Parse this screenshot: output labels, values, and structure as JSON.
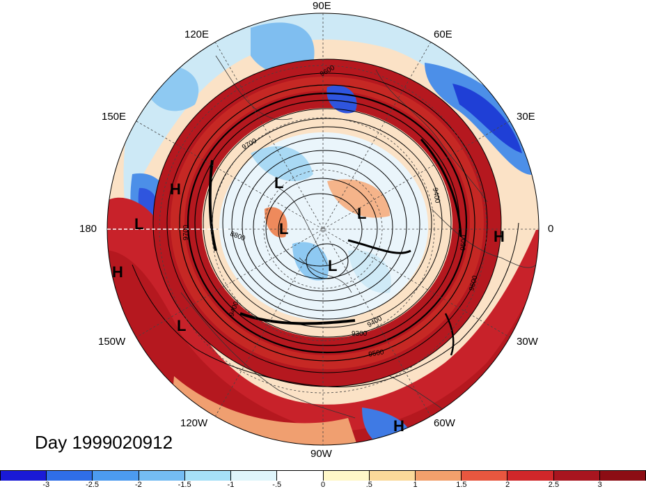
{
  "title": "Day 1999020912",
  "longitude_labels": {
    "lon_90e": "90E",
    "lon_60e": "60E",
    "lon_120e": "120E",
    "lon_30e": "30E",
    "lon_150e": "150E",
    "lon_0": "0",
    "lon_180": "180",
    "lon_30w": "30W",
    "lon_150w": "150W",
    "lon_60w": "60W",
    "lon_120w": "120W",
    "lon_90w": "90W"
  },
  "contour_labels": [
    "9600",
    "9700",
    "8800",
    "9400",
    "9300",
    "9500",
    "9600",
    "9400",
    "9500",
    "9400",
    "9700"
  ],
  "pressure_systems": [
    {
      "label": "H",
      "kind": "high"
    },
    {
      "label": "L",
      "kind": "low"
    },
    {
      "label": "H",
      "kind": "high"
    },
    {
      "label": "L",
      "kind": "low"
    },
    {
      "label": "L",
      "kind": "low"
    },
    {
      "label": "L",
      "kind": "low"
    },
    {
      "label": "L",
      "kind": "low"
    },
    {
      "label": "H",
      "kind": "high"
    },
    {
      "label": "L",
      "kind": "low"
    },
    {
      "label": "H",
      "kind": "high"
    }
  ],
  "colorbar": {
    "ticks": [
      "-3",
      "-2.5",
      "-2",
      "-1.5",
      "-1",
      "-.5",
      "0",
      ".5",
      "1",
      "1.5",
      "2",
      "2.5",
      "3"
    ],
    "colors": [
      "#1a1ad6",
      "#2f6ee8",
      "#4c9bf0",
      "#74bcf3",
      "#a6e0f7",
      "#dff5fb",
      "#ffffff",
      "#fff7c8",
      "#fbd99a",
      "#f3a06c",
      "#e8573f",
      "#d0272a",
      "#a8151f",
      "#8c0d14"
    ]
  }
}
